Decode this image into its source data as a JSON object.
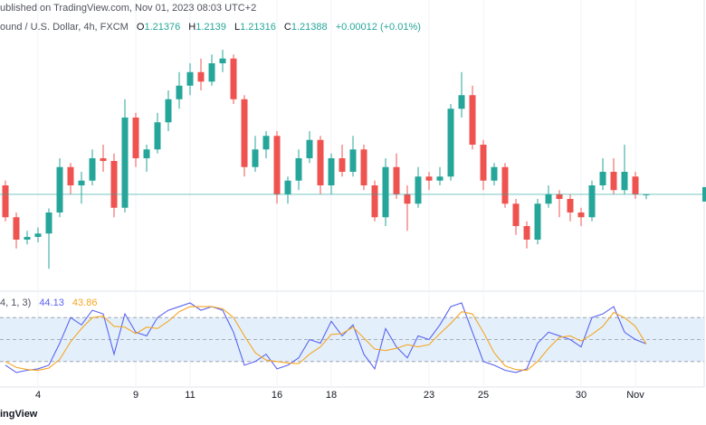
{
  "header": {
    "published": "ublished on TradingView.com, Nov 01, 2023 08:03 UTC+2",
    "symbol": "ound / U.S. Dollar, 4h, FXCM",
    "ohlc_labels": [
      "O",
      "H",
      "L",
      "C"
    ],
    "change": "+0.00012 (+0.01%)"
  },
  "chart_data": [
    {
      "type": "candlestick",
      "categories": [
        null,
        null,
        null,
        "4",
        null,
        null,
        null,
        null,
        null,
        null,
        null,
        null,
        "9",
        null,
        null,
        null,
        null,
        "11",
        null,
        null,
        null,
        null,
        null,
        null,
        null,
        "16",
        null,
        null,
        null,
        null,
        "18",
        null,
        null,
        null,
        null,
        null,
        null,
        null,
        null,
        "23",
        null,
        null,
        null,
        null,
        "25",
        null,
        null,
        null,
        null,
        null,
        null,
        null,
        null,
        "30",
        null,
        null,
        null,
        null,
        "Nov",
        null
      ],
      "open": [
        1.2152,
        1.2105,
        1.2072,
        1.2076,
        1.2081,
        1.2112,
        1.2179,
        1.2152,
        1.2159,
        1.2192,
        1.2188,
        1.2119,
        1.2252,
        1.2192,
        1.2205,
        1.2245,
        1.2279,
        1.2299,
        1.2319,
        1.2305,
        1.2332,
        1.2339,
        1.2279,
        1.2179,
        1.2205,
        1.2225,
        1.2139,
        1.2159,
        1.2192,
        1.2219,
        1.2152,
        1.2192,
        1.2172,
        1.2205,
        1.2152,
        1.2105,
        1.2179,
        1.2139,
        1.2125,
        1.2165,
        1.2159,
        1.2165,
        1.2265,
        1.2285,
        1.2212,
        1.2159,
        1.2179,
        1.2125,
        1.2092,
        1.2072,
        1.2125,
        1.2139,
        1.2132,
        1.2112,
        1.2105,
        1.2152,
        1.2172,
        1.2145,
        1.2165,
        1.21376
      ],
      "high": [
        1.2159,
        1.2112,
        1.2085,
        1.209,
        1.2118,
        1.2192,
        1.2185,
        1.2172,
        1.2205,
        1.2212,
        1.2199,
        1.2279,
        1.2259,
        1.2212,
        1.2259,
        1.2292,
        1.2319,
        1.2332,
        1.2339,
        1.2345,
        1.2352,
        1.2345,
        1.2285,
        1.2225,
        1.2232,
        1.2232,
        1.2165,
        1.2205,
        1.2232,
        1.2225,
        1.2199,
        1.2212,
        1.2225,
        1.2212,
        1.2159,
        1.2192,
        1.2199,
        1.2152,
        1.2179,
        1.2172,
        1.2179,
        1.2272,
        1.2319,
        1.2299,
        1.2219,
        1.2185,
        1.2185,
        1.2132,
        1.2099,
        1.2132,
        1.2152,
        1.2145,
        1.2139,
        1.2119,
        1.2159,
        1.2192,
        1.2192,
        1.2212,
        1.2172,
        1.2139
      ],
      "low": [
        1.2099,
        1.2059,
        1.2065,
        1.2068,
        1.2029,
        1.2105,
        1.2139,
        1.2125,
        1.2152,
        1.2172,
        1.2105,
        1.2112,
        1.2179,
        1.2172,
        1.2199,
        1.2232,
        1.2265,
        1.2285,
        1.2292,
        1.2299,
        1.2319,
        1.2272,
        1.2165,
        1.2172,
        1.2192,
        1.2125,
        1.2125,
        1.2145,
        1.2185,
        1.2139,
        1.2139,
        1.2165,
        1.2165,
        1.2145,
        1.2099,
        1.2092,
        1.2132,
        1.2085,
        1.2119,
        1.2145,
        1.2152,
        1.2159,
        1.2252,
        1.2205,
        1.2145,
        1.2152,
        1.2119,
        1.2079,
        1.2059,
        1.2065,
        1.2119,
        1.2105,
        1.2099,
        1.2092,
        1.2099,
        1.2145,
        1.2139,
        1.2139,
        1.2132,
        1.21316
      ],
      "close": [
        1.2105,
        1.2072,
        1.2076,
        1.2081,
        1.2112,
        1.2179,
        1.2152,
        1.2159,
        1.2192,
        1.2188,
        1.2119,
        1.2252,
        1.2192,
        1.2205,
        1.2245,
        1.2279,
        1.2299,
        1.2319,
        1.2305,
        1.2332,
        1.2339,
        1.2279,
        1.2179,
        1.2205,
        1.2225,
        1.2139,
        1.2159,
        1.2192,
        1.2219,
        1.2152,
        1.2192,
        1.2172,
        1.2205,
        1.2152,
        1.2105,
        1.2179,
        1.2139,
        1.2125,
        1.2165,
        1.2159,
        1.2165,
        1.2265,
        1.2285,
        1.2212,
        1.2159,
        1.2179,
        1.2125,
        1.2092,
        1.2072,
        1.2125,
        1.2139,
        1.2132,
        1.2112,
        1.2105,
        1.2152,
        1.2172,
        1.2145,
        1.2172,
        1.2139,
        1.21388
      ],
      "up_color": "#26a69a",
      "down_color": "#ef5350",
      "last_line_color": "#26a69a",
      "ylim": [
        1.2,
        1.24
      ]
    },
    {
      "type": "line",
      "title": "4, 1, 3)",
      "series": [
        {
          "color": "#5b63f0",
          "values": [
            15,
            5,
            8,
            10,
            15,
            45,
            80,
            70,
            90,
            85,
            30,
            85,
            60,
            55,
            80,
            90,
            95,
            100,
            90,
            95,
            90,
            60,
            15,
            20,
            30,
            10,
            15,
            25,
            50,
            45,
            75,
            55,
            70,
            30,
            10,
            65,
            40,
            25,
            55,
            50,
            70,
            95,
            100,
            60,
            20,
            15,
            8,
            5,
            10,
            45,
            60,
            55,
            50,
            40,
            80,
            85,
            95,
            60,
            50,
            44.13
          ]
        },
        {
          "color": "#f5a623",
          "values": [
            20,
            12,
            9,
            8,
            11,
            23,
            47,
            65,
            80,
            82,
            68,
            67,
            58,
            67,
            65,
            75,
            88,
            95,
            95,
            95,
            92,
            80,
            55,
            32,
            22,
            20,
            18,
            17,
            30,
            40,
            57,
            58,
            67,
            52,
            37,
            35,
            38,
            43,
            40,
            43,
            58,
            72,
            88,
            85,
            60,
            32,
            14,
            9,
            8,
            20,
            38,
            53,
            55,
            48,
            57,
            68,
            87,
            80,
            68,
            43.86
          ]
        }
      ],
      "band_color": "#e3f0fc",
      "ylim": [
        0,
        100
      ],
      "yticks": [
        20,
        50,
        80
      ]
    }
  ],
  "footer": {
    "logo": "ingView"
  }
}
